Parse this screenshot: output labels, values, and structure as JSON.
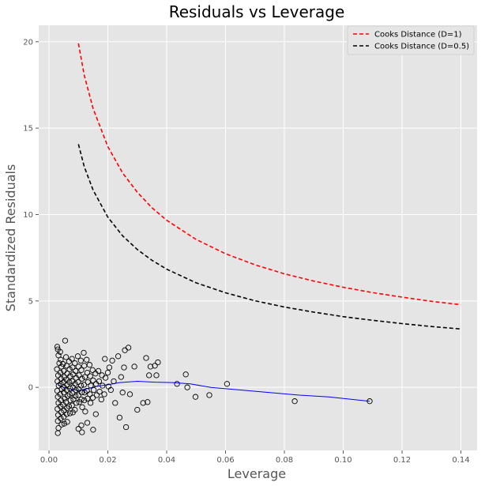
{
  "chart_data": {
    "type": "scatter",
    "title": "Residuals vs Leverage",
    "xlabel": "Leverage",
    "ylabel": "Standardized Residuals",
    "xlim": [
      -0.0035,
      0.1455
    ],
    "ylim": [
      -3.65,
      20.95
    ],
    "x_ticks": [
      0.0,
      0.02,
      0.04,
      0.06,
      0.08,
      0.1,
      0.12,
      0.14
    ],
    "x_tick_labels": [
      "0.00",
      "0.02",
      "0.04",
      "0.06",
      "0.08",
      "0.10",
      "0.12",
      "0.14"
    ],
    "y_ticks": [
      0,
      5,
      10,
      15,
      20
    ],
    "y_tick_labels": [
      "0",
      "5",
      "10",
      "15",
      "20"
    ],
    "grid": true,
    "legend_position": "top-right",
    "colors": {
      "background": "#e5e5e5",
      "grid": "#ffffff",
      "cooks_1": "#ff0000",
      "cooks_05": "#000000",
      "lowess": "#0000ff",
      "points": "#000000"
    },
    "series": [
      {
        "name": "Cooks Distance (D=1)",
        "kind": "dashed-line",
        "x": [
          0.01,
          0.012,
          0.015,
          0.02,
          0.025,
          0.03,
          0.035,
          0.04,
          0.05,
          0.06,
          0.07,
          0.08,
          0.09,
          0.1,
          0.11,
          0.12,
          0.13,
          0.14
        ],
        "y": [
          19.9,
          18.05,
          16.13,
          13.93,
          12.41,
          11.29,
          10.39,
          9.67,
          8.56,
          7.73,
          7.09,
          6.57,
          6.15,
          5.79,
          5.48,
          5.22,
          4.98,
          4.78
        ]
      },
      {
        "name": "Cooks Distance (D=0.5)",
        "kind": "dashed-line",
        "x": [
          0.01,
          0.012,
          0.015,
          0.02,
          0.025,
          0.03,
          0.035,
          0.04,
          0.05,
          0.06,
          0.07,
          0.08,
          0.09,
          0.1,
          0.11,
          0.12,
          0.13,
          0.14
        ],
        "y": [
          14.07,
          12.76,
          11.41,
          9.85,
          8.77,
          7.98,
          7.35,
          6.84,
          6.05,
          5.47,
          5.01,
          4.65,
          4.35,
          4.09,
          3.88,
          3.69,
          3.52,
          3.38
        ]
      },
      {
        "name": "",
        "kind": "lowess-line",
        "x": [
          0.003,
          0.005,
          0.008,
          0.01,
          0.013,
          0.016,
          0.02,
          0.024,
          0.03,
          0.036,
          0.042,
          0.048,
          0.055,
          0.065,
          0.075,
          0.085,
          0.095,
          0.109
        ],
        "y": [
          0.15,
          0.0,
          -0.12,
          -0.18,
          -0.08,
          0.05,
          0.15,
          0.28,
          0.35,
          0.3,
          0.28,
          0.2,
          0.0,
          -0.15,
          -0.3,
          -0.45,
          -0.55,
          -0.8
        ]
      }
    ],
    "points": [
      {
        "x": 0.0028,
        "y": 2.35
      },
      {
        "x": 0.003,
        "y": 2.2
      },
      {
        "x": 0.0032,
        "y": 1.85
      },
      {
        "x": 0.0035,
        "y": 1.4
      },
      {
        "x": 0.0027,
        "y": 1.05
      },
      {
        "x": 0.0031,
        "y": 0.7
      },
      {
        "x": 0.0029,
        "y": 0.35
      },
      {
        "x": 0.0033,
        "y": 0.1
      },
      {
        "x": 0.0028,
        "y": -0.2
      },
      {
        "x": 0.003,
        "y": -0.55
      },
      {
        "x": 0.0032,
        "y": -0.9
      },
      {
        "x": 0.0029,
        "y": -1.25
      },
      {
        "x": 0.0031,
        "y": -1.6
      },
      {
        "x": 0.003,
        "y": -1.95
      },
      {
        "x": 0.0032,
        "y": -2.35
      },
      {
        "x": 0.003,
        "y": -2.65
      },
      {
        "x": 0.0038,
        "y": 2.05
      },
      {
        "x": 0.004,
        "y": 1.6
      },
      {
        "x": 0.0042,
        "y": 1.2
      },
      {
        "x": 0.0039,
        "y": 0.85
      },
      {
        "x": 0.0041,
        "y": 0.5
      },
      {
        "x": 0.004,
        "y": 0.2
      },
      {
        "x": 0.0043,
        "y": -0.1
      },
      {
        "x": 0.0038,
        "y": -0.4
      },
      {
        "x": 0.0041,
        "y": -0.75
      },
      {
        "x": 0.0039,
        "y": -1.1
      },
      {
        "x": 0.0042,
        "y": -1.45
      },
      {
        "x": 0.004,
        "y": -1.8
      },
      {
        "x": 0.0043,
        "y": -2.15
      },
      {
        "x": 0.0048,
        "y": 1.35
      },
      {
        "x": 0.005,
        "y": 0.95
      },
      {
        "x": 0.0052,
        "y": 0.6
      },
      {
        "x": 0.0049,
        "y": 0.3
      },
      {
        "x": 0.0051,
        "y": 0.0
      },
      {
        "x": 0.005,
        "y": -0.3
      },
      {
        "x": 0.0053,
        "y": -0.65
      },
      {
        "x": 0.0048,
        "y": -1.0
      },
      {
        "x": 0.0051,
        "y": -1.35
      },
      {
        "x": 0.005,
        "y": -1.7
      },
      {
        "x": 0.0052,
        "y": -2.1
      },
      {
        "x": 0.0055,
        "y": 2.7
      },
      {
        "x": 0.0058,
        "y": 1.75
      },
      {
        "x": 0.006,
        "y": 1.25
      },
      {
        "x": 0.0062,
        "y": 0.8
      },
      {
        "x": 0.0059,
        "y": 0.45
      },
      {
        "x": 0.0061,
        "y": 0.15
      },
      {
        "x": 0.006,
        "y": -0.15
      },
      {
        "x": 0.0063,
        "y": -0.5
      },
      {
        "x": 0.0058,
        "y": -0.85
      },
      {
        "x": 0.0061,
        "y": -1.2
      },
      {
        "x": 0.006,
        "y": -1.55
      },
      {
        "x": 0.0062,
        "y": -2.0
      },
      {
        "x": 0.0068,
        "y": 1.5
      },
      {
        "x": 0.007,
        "y": 1.05
      },
      {
        "x": 0.0072,
        "y": 0.65
      },
      {
        "x": 0.0069,
        "y": 0.3
      },
      {
        "x": 0.0071,
        "y": -0.05
      },
      {
        "x": 0.007,
        "y": -0.4
      },
      {
        "x": 0.0073,
        "y": -0.75
      },
      {
        "x": 0.0068,
        "y": -1.1
      },
      {
        "x": 0.0071,
        "y": -1.5
      },
      {
        "x": 0.0078,
        "y": 1.65
      },
      {
        "x": 0.008,
        "y": 1.15
      },
      {
        "x": 0.0082,
        "y": 0.75
      },
      {
        "x": 0.0079,
        "y": 0.35
      },
      {
        "x": 0.0081,
        "y": 0.0
      },
      {
        "x": 0.008,
        "y": -0.35
      },
      {
        "x": 0.0083,
        "y": -0.7
      },
      {
        "x": 0.0078,
        "y": -1.05
      },
      {
        "x": 0.0081,
        "y": -1.45
      },
      {
        "x": 0.0088,
        "y": 1.4
      },
      {
        "x": 0.009,
        "y": 0.95
      },
      {
        "x": 0.0092,
        "y": 0.55
      },
      {
        "x": 0.0089,
        "y": 0.2
      },
      {
        "x": 0.0091,
        "y": -0.15
      },
      {
        "x": 0.009,
        "y": -0.5
      },
      {
        "x": 0.0093,
        "y": -0.9
      },
      {
        "x": 0.0088,
        "y": -1.3
      },
      {
        "x": 0.0098,
        "y": 1.8
      },
      {
        "x": 0.01,
        "y": 1.2
      },
      {
        "x": 0.0102,
        "y": 0.7
      },
      {
        "x": 0.0099,
        "y": 0.3
      },
      {
        "x": 0.0101,
        "y": -0.1
      },
      {
        "x": 0.01,
        "y": -0.45
      },
      {
        "x": 0.0103,
        "y": -0.85
      },
      {
        "x": 0.01,
        "y": -2.4
      },
      {
        "x": 0.0108,
        "y": 1.55
      },
      {
        "x": 0.011,
        "y": 1.0
      },
      {
        "x": 0.0112,
        "y": 0.5
      },
      {
        "x": 0.0109,
        "y": 0.1
      },
      {
        "x": 0.0111,
        "y": -0.3
      },
      {
        "x": 0.011,
        "y": -0.7
      },
      {
        "x": 0.0113,
        "y": -1.15
      },
      {
        "x": 0.011,
        "y": -2.2
      },
      {
        "x": 0.0112,
        "y": -2.6
      },
      {
        "x": 0.0118,
        "y": 2.0
      },
      {
        "x": 0.012,
        "y": 1.25
      },
      {
        "x": 0.0122,
        "y": 0.6
      },
      {
        "x": 0.0119,
        "y": 0.15
      },
      {
        "x": 0.0121,
        "y": -0.3
      },
      {
        "x": 0.012,
        "y": -0.75
      },
      {
        "x": 0.0123,
        "y": -1.4
      },
      {
        "x": 0.0128,
        "y": 1.6
      },
      {
        "x": 0.013,
        "y": 0.85
      },
      {
        "x": 0.0132,
        "y": 0.3
      },
      {
        "x": 0.0129,
        "y": -0.2
      },
      {
        "x": 0.0131,
        "y": -0.65
      },
      {
        "x": 0.013,
        "y": -2.05
      },
      {
        "x": 0.0138,
        "y": 1.3
      },
      {
        "x": 0.014,
        "y": 0.65
      },
      {
        "x": 0.0142,
        "y": 0.1
      },
      {
        "x": 0.0139,
        "y": -0.4
      },
      {
        "x": 0.0141,
        "y": -0.9
      },
      {
        "x": 0.0148,
        "y": 1.0
      },
      {
        "x": 0.015,
        "y": 0.4
      },
      {
        "x": 0.0152,
        "y": -0.15
      },
      {
        "x": 0.0149,
        "y": -0.6
      },
      {
        "x": 0.015,
        "y": -2.45
      },
      {
        "x": 0.0158,
        "y": 0.8
      },
      {
        "x": 0.016,
        "y": 0.2
      },
      {
        "x": 0.0162,
        "y": -0.45
      },
      {
        "x": 0.0159,
        "y": -1.55
      },
      {
        "x": 0.0168,
        "y": 0.95
      },
      {
        "x": 0.017,
        "y": 0.35
      },
      {
        "x": 0.0172,
        "y": -0.25
      },
      {
        "x": 0.018,
        "y": 0.7
      },
      {
        "x": 0.0182,
        "y": 0.1
      },
      {
        "x": 0.0178,
        "y": -0.7
      },
      {
        "x": 0.019,
        "y": 1.65
      },
      {
        "x": 0.0192,
        "y": 0.55
      },
      {
        "x": 0.0188,
        "y": -0.4
      },
      {
        "x": 0.02,
        "y": 0.85
      },
      {
        "x": 0.0202,
        "y": 0.05
      },
      {
        "x": 0.0205,
        "y": 1.15
      },
      {
        "x": 0.021,
        "y": -0.15
      },
      {
        "x": 0.0215,
        "y": 1.55
      },
      {
        "x": 0.022,
        "y": 0.35
      },
      {
        "x": 0.0225,
        "y": -0.9
      },
      {
        "x": 0.0235,
        "y": 1.8
      },
      {
        "x": 0.024,
        "y": -1.75
      },
      {
        "x": 0.0245,
        "y": 0.6
      },
      {
        "x": 0.025,
        "y": -0.3
      },
      {
        "x": 0.0255,
        "y": 1.15
      },
      {
        "x": 0.0258,
        "y": 2.15
      },
      {
        "x": 0.0262,
        "y": -2.3
      },
      {
        "x": 0.027,
        "y": 2.3
      },
      {
        "x": 0.0275,
        "y": -0.4
      },
      {
        "x": 0.029,
        "y": 1.2
      },
      {
        "x": 0.03,
        "y": -1.3
      },
      {
        "x": 0.032,
        "y": -0.9
      },
      {
        "x": 0.033,
        "y": 1.7
      },
      {
        "x": 0.034,
        "y": 0.7
      },
      {
        "x": 0.0345,
        "y": 1.2
      },
      {
        "x": 0.0335,
        "y": -0.85
      },
      {
        "x": 0.036,
        "y": 1.25
      },
      {
        "x": 0.0365,
        "y": 0.7
      },
      {
        "x": 0.037,
        "y": 1.45
      },
      {
        "x": 0.0435,
        "y": 0.2
      },
      {
        "x": 0.0465,
        "y": 0.75
      },
      {
        "x": 0.047,
        "y": 0.0
      },
      {
        "x": 0.0498,
        "y": -0.55
      },
      {
        "x": 0.0545,
        "y": -0.45
      },
      {
        "x": 0.0605,
        "y": 0.2
      },
      {
        "x": 0.0835,
        "y": -0.8
      },
      {
        "x": 0.109,
        "y": -0.8
      }
    ],
    "legend": [
      {
        "label": "Cooks Distance (D=1)",
        "color": "#ff0000"
      },
      {
        "label": "Cooks Distance (D=0.5)",
        "color": "#000000"
      }
    ]
  }
}
